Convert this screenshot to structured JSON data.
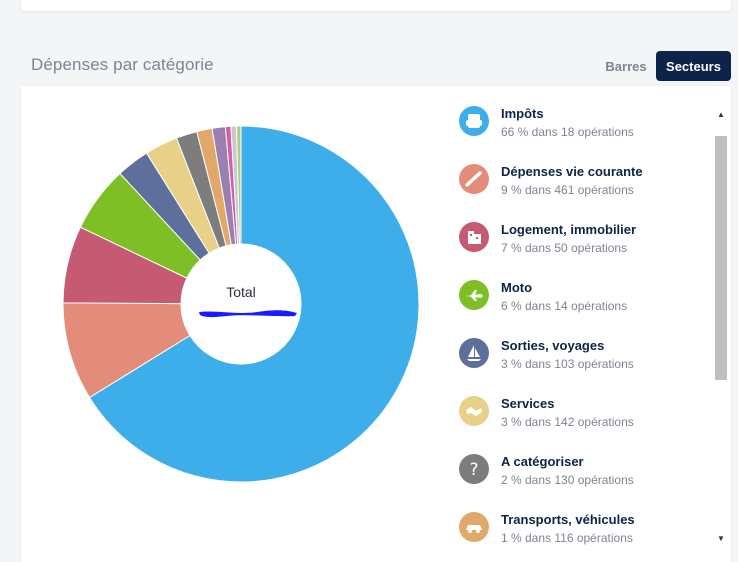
{
  "section": {
    "title": "Dépenses par catégorie"
  },
  "toggles": {
    "bars": "Barres",
    "pie": "Secteurs"
  },
  "center": {
    "label": "Total"
  },
  "colors": {
    "accent": "#0b2447",
    "muted": "#7d8592"
  },
  "chart_data": {
    "type": "pie",
    "donut": true,
    "slices": [
      {
        "label": "Impôts",
        "value": 66.2,
        "color": "#3daee9"
      },
      {
        "label": "Dépenses vie courante",
        "value": 8.9,
        "color": "#e48c7a"
      },
      {
        "label": "Logement, immobilier",
        "value": 7.0,
        "color": "#c55a72"
      },
      {
        "label": "Moto",
        "value": 6.0,
        "color": "#7fbf26"
      },
      {
        "label": "Sorties, voyages",
        "value": 3.0,
        "color": "#5e6f9c"
      },
      {
        "label": "Services",
        "value": 3.0,
        "color": "#e8d088"
      },
      {
        "label": "A catégoriser",
        "value": 1.9,
        "color": "#7d7d7d"
      },
      {
        "label": "Transports, véhicules",
        "value": 1.4,
        "color": "#e0a96a"
      },
      {
        "label": "",
        "value": 1.2,
        "color": "#9b7fb0"
      },
      {
        "label": "",
        "value": 0.5,
        "color": "#d15fae"
      },
      {
        "label": "",
        "value": 0.5,
        "color": "#c9c9c9"
      },
      {
        "label": "",
        "value": 0.4,
        "color": "#b6c88a"
      }
    ]
  },
  "legend": [
    {
      "name": "Impôts",
      "detail": "66 % dans 18 opérations",
      "color": "#3daee9",
      "icon": "tax-icon"
    },
    {
      "name": "Dépenses vie courante",
      "detail": "9 % dans 461 opérations",
      "color": "#e48c7a",
      "icon": "daily-expenses-icon"
    },
    {
      "name": "Logement, immobilier",
      "detail": "7 % dans 50 opérations",
      "color": "#c55a72",
      "icon": "building-icon"
    },
    {
      "name": "Moto",
      "detail": "6 % dans 14 opérations",
      "color": "#7fbf26",
      "icon": "plane-icon"
    },
    {
      "name": "Sorties, voyages",
      "detail": "3 % dans 103 opérations",
      "color": "#5e6f9c",
      "icon": "sailboat-icon"
    },
    {
      "name": "Services",
      "detail": "3 % dans 142 opérations",
      "color": "#e8d088",
      "icon": "handshake-icon"
    },
    {
      "name": "A catégoriser",
      "detail": "2 % dans 130 opérations",
      "color": "#7d7d7d",
      "icon": "question-mark-icon"
    },
    {
      "name": "Transports, véhicules",
      "detail": "1 % dans 116 opérations",
      "color": "#e0a96a",
      "icon": "car-icon"
    }
  ]
}
